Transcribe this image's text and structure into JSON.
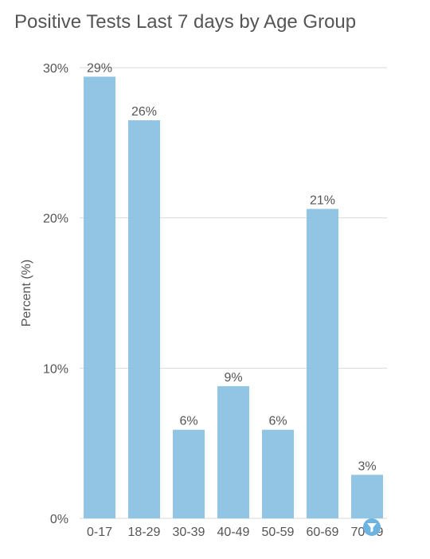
{
  "chart_data": {
    "type": "bar",
    "title": "Positive Tests Last 7 days by Age Group",
    "xlabel": "",
    "ylabel": "Percent (%)",
    "ylim": [
      0,
      30
    ],
    "y_ticks": [
      "0%",
      "10%",
      "20%",
      "30%"
    ],
    "y_tick_values": [
      0,
      10,
      20,
      30
    ],
    "categories": [
      "0-17",
      "18-29",
      "30-39",
      "40-49",
      "50-59",
      "60-69",
      "70-79"
    ],
    "values": [
      29.4,
      26.5,
      5.9,
      8.8,
      5.9,
      20.6,
      2.9
    ],
    "data_labels": [
      "29%",
      "26%",
      "6%",
      "9%",
      "6%",
      "21%",
      "3%"
    ],
    "grid": true,
    "legend": "none"
  },
  "colors": {
    "bar": "#92c5e4",
    "grid": "#d9d9d9",
    "text": "#555555",
    "filter_badge": "#6bb3e0"
  },
  "icons": {
    "filter": "filter-icon"
  }
}
